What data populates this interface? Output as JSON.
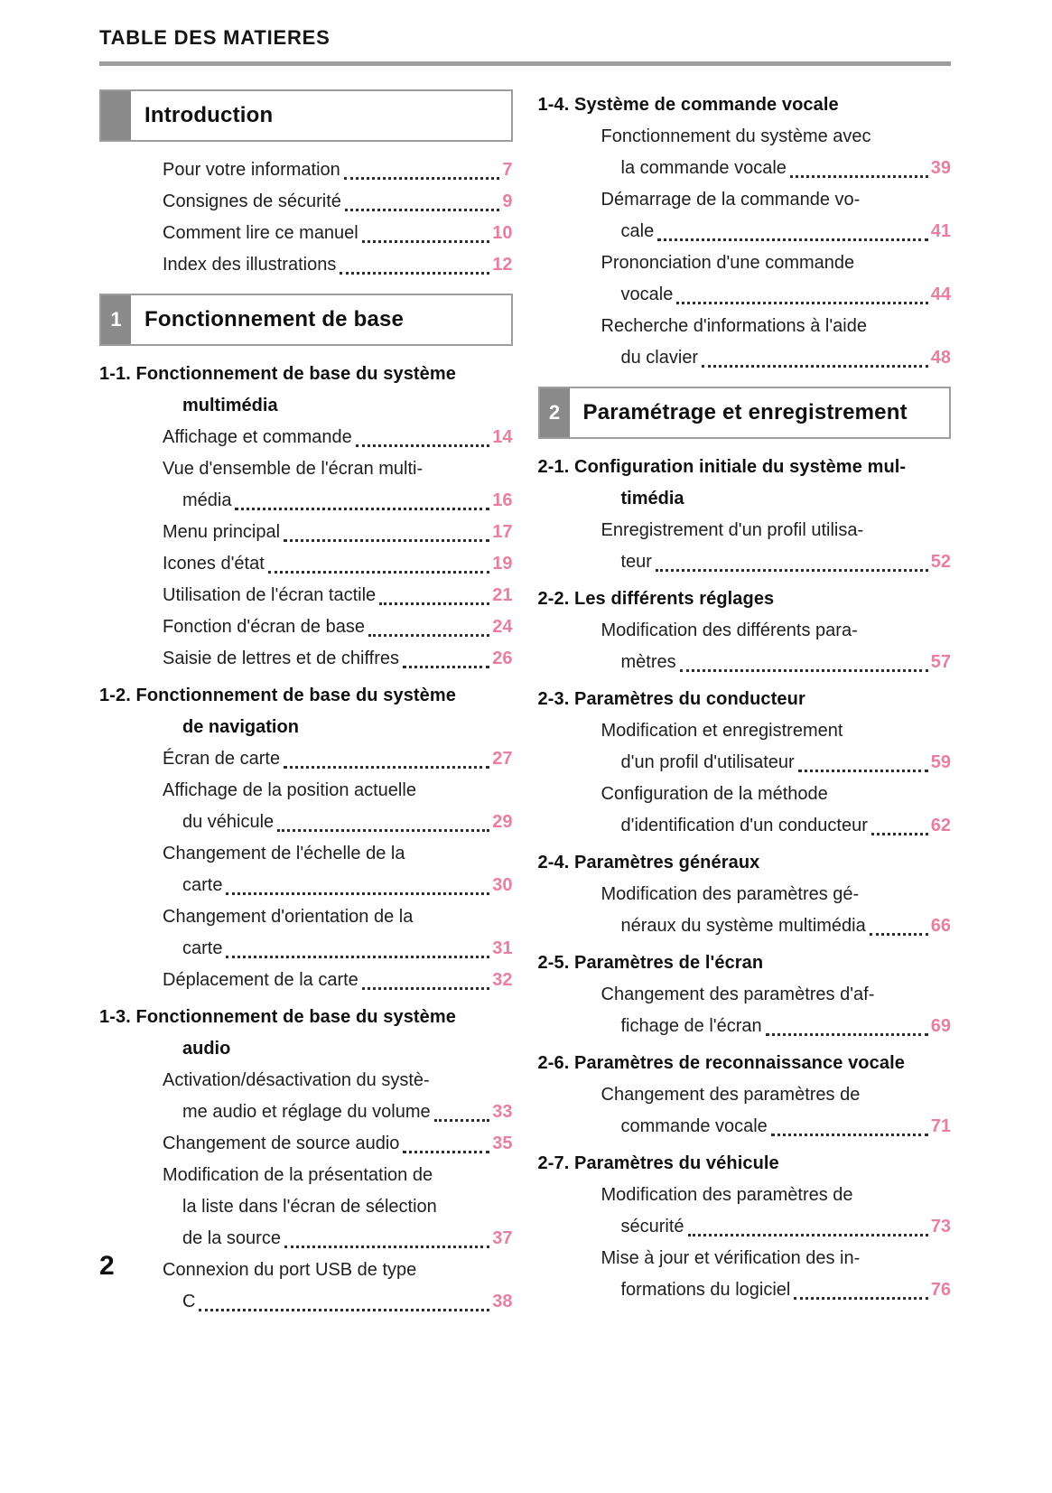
{
  "header": {
    "title": "TABLE DES MATIERES"
  },
  "footer": {
    "page_number": "2"
  },
  "colors": {
    "accent_pink": "#e87f9f",
    "box_gray": "#8a8a8a",
    "rule_gray": "#9d9d9d"
  },
  "columns": {
    "left": [
      {
        "type": "chapter",
        "number": "",
        "title": "Introduction"
      },
      {
        "type": "entry",
        "lines": [
          "Pour votre information"
        ],
        "page": "7"
      },
      {
        "type": "entry",
        "lines": [
          "Consignes de sécurité"
        ],
        "page": "9"
      },
      {
        "type": "entry",
        "lines": [
          "Comment lire ce manuel"
        ],
        "page": "10"
      },
      {
        "type": "entry",
        "lines": [
          "Index des illustrations"
        ],
        "page": "12"
      },
      {
        "type": "chapter",
        "number": "1",
        "title": "Fonctionnement de base"
      },
      {
        "type": "section",
        "label": "1-1.",
        "title_lines": [
          "Fonctionnement de base du système",
          "multimédia"
        ]
      },
      {
        "type": "entry",
        "lines": [
          "Affichage et commande"
        ],
        "page": "14"
      },
      {
        "type": "entry",
        "lines": [
          "Vue d'ensemble de l'écran multi-",
          "média"
        ],
        "page": "16"
      },
      {
        "type": "entry",
        "lines": [
          "Menu principal"
        ],
        "page": "17"
      },
      {
        "type": "entry",
        "lines": [
          "Icones d'état"
        ],
        "page": "19"
      },
      {
        "type": "entry",
        "lines": [
          "Utilisation de l'écran tactile"
        ],
        "page": "21"
      },
      {
        "type": "entry",
        "lines": [
          "Fonction d'écran de base"
        ],
        "page": "24"
      },
      {
        "type": "entry",
        "lines": [
          "Saisie de lettres et de chiffres"
        ],
        "page": "26"
      },
      {
        "type": "section",
        "label": "1-2.",
        "title_lines": [
          "Fonctionnement de base du système",
          "de navigation"
        ]
      },
      {
        "type": "entry",
        "lines": [
          "Écran de carte"
        ],
        "page": "27"
      },
      {
        "type": "entry",
        "lines": [
          "Affichage de la position actuelle",
          "du véhicule"
        ],
        "page": "29"
      },
      {
        "type": "entry",
        "lines": [
          "Changement de l'échelle de la",
          "carte"
        ],
        "page": "30"
      },
      {
        "type": "entry",
        "lines": [
          "Changement d'orientation de la",
          "carte"
        ],
        "page": "31"
      },
      {
        "type": "entry",
        "lines": [
          "Déplacement de la carte"
        ],
        "page": "32"
      },
      {
        "type": "section",
        "label": "1-3.",
        "title_lines": [
          "Fonctionnement de base du système",
          "audio"
        ]
      },
      {
        "type": "entry",
        "lines": [
          "Activation/désactivation du systè-",
          "me audio et réglage du volume"
        ],
        "page": "33"
      },
      {
        "type": "entry",
        "lines": [
          "Changement de source audio"
        ],
        "page": "35"
      },
      {
        "type": "entry",
        "lines": [
          "Modification de la présentation de",
          "la liste dans l'écran de sélection",
          "de la source"
        ],
        "page": "37"
      },
      {
        "type": "entry",
        "lines": [
          "Connexion du port USB de type",
          "C"
        ],
        "page": "38"
      }
    ],
    "right": [
      {
        "type": "section",
        "label": "1-4.",
        "title_lines": [
          "Système de commande vocale"
        ]
      },
      {
        "type": "entry",
        "lines": [
          "Fonctionnement du système avec",
          "la commande vocale"
        ],
        "page": "39"
      },
      {
        "type": "entry",
        "lines": [
          "Démarrage de la commande vo-",
          "cale"
        ],
        "page": "41"
      },
      {
        "type": "entry",
        "lines": [
          "Prononciation d'une commande",
          "vocale"
        ],
        "page": "44"
      },
      {
        "type": "entry",
        "lines": [
          "Recherche d'informations à l'aide",
          "du clavier"
        ],
        "page": "48"
      },
      {
        "type": "chapter",
        "number": "2",
        "title": "Paramétrage et enregistrement"
      },
      {
        "type": "section",
        "label": "2-1.",
        "title_lines": [
          "Configuration initiale du système mul-",
          "timédia"
        ]
      },
      {
        "type": "entry",
        "lines": [
          "Enregistrement d'un profil utilisa-",
          "teur"
        ],
        "page": "52"
      },
      {
        "type": "section",
        "label": "2-2.",
        "title_lines": [
          "Les différents réglages"
        ]
      },
      {
        "type": "entry",
        "lines": [
          "Modification des différents para-",
          "mètres"
        ],
        "page": "57"
      },
      {
        "type": "section",
        "label": "2-3.",
        "title_lines": [
          "Paramètres du conducteur"
        ]
      },
      {
        "type": "entry",
        "lines": [
          "Modification et enregistrement",
          "d'un profil d'utilisateur"
        ],
        "page": "59"
      },
      {
        "type": "entry",
        "lines": [
          "Configuration de la méthode",
          "d'identification d'un conducteur"
        ],
        "page": "62"
      },
      {
        "type": "section",
        "label": "2-4.",
        "title_lines": [
          "Paramètres généraux"
        ]
      },
      {
        "type": "entry",
        "lines": [
          "Modification des paramètres gé-",
          "néraux du système multimédia"
        ],
        "page": "66"
      },
      {
        "type": "section",
        "label": "2-5.",
        "title_lines": [
          "Paramètres de l'écran"
        ]
      },
      {
        "type": "entry",
        "lines": [
          "Changement des paramètres d'af-",
          "fichage de l'écran"
        ],
        "page": "69"
      },
      {
        "type": "section",
        "label": "2-6.",
        "title_lines": [
          "Paramètres de reconnaissance vocale"
        ]
      },
      {
        "type": "entry",
        "lines": [
          "Changement des paramètres de",
          "commande vocale"
        ],
        "page": "71"
      },
      {
        "type": "section",
        "label": "2-7.",
        "title_lines": [
          "Paramètres du véhicule"
        ]
      },
      {
        "type": "entry",
        "lines": [
          "Modification des paramètres de",
          "sécurité"
        ],
        "page": "73"
      },
      {
        "type": "entry",
        "lines": [
          "Mise à jour et vérification des in-",
          "formations du logiciel"
        ],
        "page": "76"
      }
    ]
  }
}
